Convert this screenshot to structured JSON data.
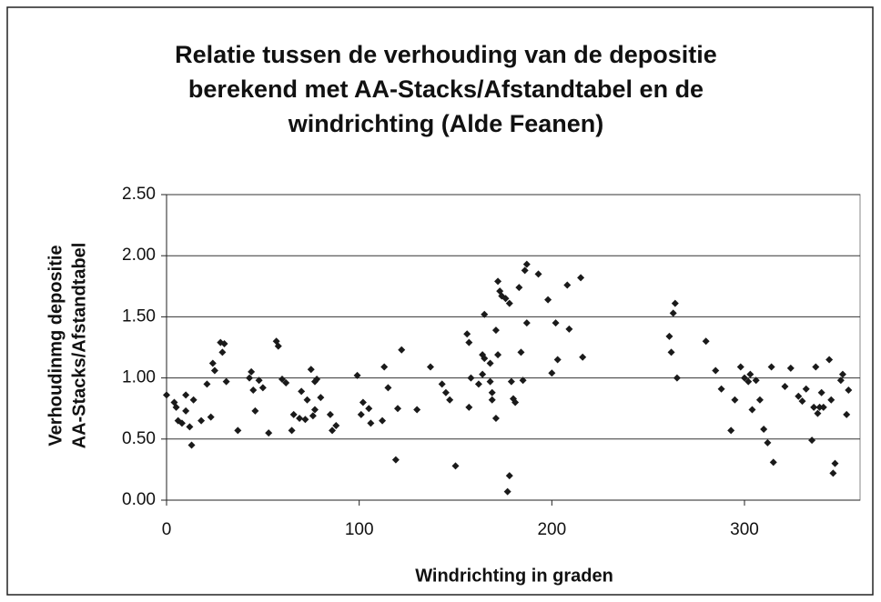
{
  "chart_data": {
    "type": "scatter",
    "title": [
      "Relatie tussen de verhouding van de depositie",
      "berekend met AA-Stacks/Afstandtabel en de",
      "windrichting (Alde Feanen)"
    ],
    "x_label": "Windrichting in graden",
    "y_label": [
      "Verhoudinmg depositie",
      "AA-Stacks/Afstandtabel"
    ],
    "color": "#1a1a1a",
    "grid": true,
    "xlim": [
      0,
      360
    ],
    "xticks": [
      0,
      100,
      200,
      300
    ],
    "ylim": [
      0,
      2.5
    ],
    "yticks": [
      {
        "value": 0,
        "label": "0.00"
      },
      {
        "value": 0.5,
        "label": "0.50"
      },
      {
        "value": 1,
        "label": "1.00"
      },
      {
        "value": 1.5,
        "label": "1.50"
      },
      {
        "value": 2,
        "label": "2.00"
      },
      {
        "value": 2.5,
        "label": "2.50"
      }
    ],
    "x": [
      0,
      4,
      5,
      6,
      8,
      10,
      10,
      12,
      13,
      14,
      18,
      21,
      23,
      24,
      25,
      28,
      29,
      30,
      31,
      37,
      43,
      44,
      45,
      46,
      48,
      50,
      53,
      57,
      58,
      60,
      62,
      65,
      66,
      69,
      70,
      72,
      73,
      75,
      76,
      77,
      77,
      78,
      80,
      85,
      86,
      88,
      99,
      101,
      102,
      105,
      106,
      112,
      113,
      115,
      119,
      120,
      122,
      130,
      137,
      143,
      145,
      147,
      150,
      156,
      157,
      158,
      157,
      162,
      164,
      165,
      164,
      165,
      168,
      168,
      169,
      169,
      171,
      171,
      172,
      172,
      173,
      174,
      176,
      178,
      178,
      177,
      179,
      180,
      181,
      183,
      184,
      185,
      186,
      187,
      187,
      193,
      198,
      200,
      202,
      203,
      208,
      209,
      215,
      216,
      261,
      262,
      263,
      264,
      265,
      280,
      285,
      288,
      293,
      295,
      298,
      300,
      302,
      303,
      304,
      306,
      308,
      310,
      312,
      314,
      315,
      321,
      324,
      328,
      330,
      332,
      335,
      336,
      337,
      338,
      339,
      340,
      341,
      344,
      345,
      346,
      347,
      350,
      351,
      353,
      354
    ],
    "values": [
      0.86,
      0.8,
      0.76,
      0.65,
      0.63,
      0.86,
      0.73,
      0.6,
      0.45,
      0.82,
      0.65,
      0.95,
      0.68,
      1.12,
      1.06,
      1.29,
      1.21,
      1.28,
      0.97,
      0.57,
      1.0,
      1.05,
      0.9,
      0.73,
      0.98,
      0.92,
      0.55,
      1.3,
      1.26,
      0.99,
      0.96,
      0.57,
      0.7,
      0.67,
      0.89,
      0.66,
      0.82,
      1.07,
      0.69,
      0.97,
      0.74,
      0.99,
      0.84,
      0.7,
      0.57,
      0.61,
      1.02,
      0.7,
      0.8,
      0.75,
      0.63,
      0.65,
      1.09,
      0.92,
      0.33,
      0.75,
      1.23,
      0.74,
      1.09,
      0.95,
      0.88,
      0.82,
      0.28,
      1.36,
      1.29,
      1.0,
      0.76,
      0.95,
      1.19,
      1.16,
      1.03,
      1.52,
      1.12,
      0.97,
      0.88,
      0.82,
      0.67,
      1.39,
      1.19,
      1.79,
      1.71,
      1.67,
      1.65,
      1.61,
      0.2,
      0.07,
      0.97,
      0.83,
      0.8,
      1.74,
      1.21,
      0.98,
      1.88,
      1.93,
      1.45,
      1.85,
      1.64,
      1.04,
      1.45,
      1.15,
      1.76,
      1.4,
      1.82,
      1.17,
      1.34,
      1.21,
      1.53,
      1.61,
      1.0,
      1.3,
      1.06,
      0.91,
      0.57,
      0.82,
      1.09,
      1.0,
      0.97,
      1.03,
      0.74,
      0.98,
      0.82,
      0.58,
      0.47,
      1.09,
      0.31,
      0.93,
      1.08,
      0.85,
      0.81,
      0.91,
      0.49,
      0.76,
      1.09,
      0.71,
      0.76,
      0.88,
      0.76,
      1.15,
      0.82,
      0.22,
      0.3,
      0.98,
      1.03,
      0.7,
      0.9
    ]
  }
}
